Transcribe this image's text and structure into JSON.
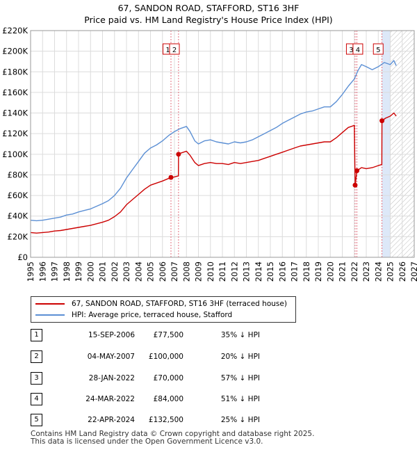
{
  "title_line1": "67, SANDON ROAD, STAFFORD, ST16 3HF",
  "title_line2": "Price paid vs. HM Land Registry's House Price Index (HPI)",
  "legend": {
    "property_label": "67, SANDON ROAD, STAFFORD, ST16 3HF (terraced house)",
    "hpi_label": "HPI: Average price, terraced house, Stafford"
  },
  "colors": {
    "property": "#cc0000",
    "hpi": "#5b8fd4",
    "highlight": "#dde8f8",
    "hatch": "#bbbbbb"
  },
  "sales": [
    {
      "num": "1",
      "date": "15-SEP-2006",
      "price": "£77,500",
      "hpi": "35% ↓ HPI"
    },
    {
      "num": "2",
      "date": "04-MAY-2007",
      "price": "£100,000",
      "hpi": "20% ↓ HPI"
    },
    {
      "num": "3",
      "date": "28-JAN-2022",
      "price": "£70,000",
      "hpi": "57% ↓ HPI"
    },
    {
      "num": "4",
      "date": "24-MAR-2022",
      "price": "£84,000",
      "hpi": "51% ↓ HPI"
    },
    {
      "num": "5",
      "date": "22-APR-2024",
      "price": "£132,500",
      "hpi": "25% ↓ HPI"
    }
  ],
  "footer_line1": "Contains HM Land Registry data © Crown copyright and database right 2025.",
  "footer_line2": "This data is licensed under the Open Government Licence v3.0.",
  "chart_data": {
    "type": "line",
    "title": "67, SANDON ROAD, STAFFORD, ST16 3HF",
    "subtitle": "Price paid vs. HM Land Registry's House Price Index (HPI)",
    "xlabel": "",
    "ylabel": "",
    "xlim": [
      1995,
      2027
    ],
    "ylim": [
      0,
      220000
    ],
    "x_ticks": [
      1995,
      1996,
      1997,
      1998,
      1999,
      2000,
      2001,
      2002,
      2003,
      2004,
      2005,
      2006,
      2007,
      2008,
      2009,
      2010,
      2011,
      2012,
      2013,
      2014,
      2015,
      2016,
      2017,
      2018,
      2019,
      2020,
      2021,
      2022,
      2023,
      2024,
      2025,
      2026,
      2027
    ],
    "y_ticks": [
      0,
      20000,
      40000,
      60000,
      80000,
      100000,
      120000,
      140000,
      160000,
      180000,
      200000,
      220000
    ],
    "y_tick_labels": [
      "£0",
      "£20K",
      "£40K",
      "£60K",
      "£80K",
      "£100K",
      "£120K",
      "£140K",
      "£160K",
      "£180K",
      "£200K",
      "£220K"
    ],
    "grid": true,
    "highlight_range": [
      2024.31,
      2025.0
    ],
    "forecast_start": 2025.0,
    "series": [
      {
        "name": "HPI: Average price, terraced house, Stafford",
        "x": [
          1995,
          1995.5,
          1996,
          1996.5,
          1997,
          1997.5,
          1998,
          1998.5,
          1999,
          1999.5,
          2000,
          2000.5,
          2001,
          2001.5,
          2002,
          2002.5,
          2003,
          2003.5,
          2004,
          2004.5,
          2005,
          2005.5,
          2006,
          2006.5,
          2007,
          2007.5,
          2008,
          2008.3,
          2008.7,
          2009,
          2009.5,
          2010,
          2010.5,
          2011,
          2011.5,
          2012,
          2012.5,
          2013,
          2013.5,
          2014,
          2014.5,
          2015,
          2015.5,
          2016,
          2016.5,
          2017,
          2017.5,
          2018,
          2018.5,
          2019,
          2019.5,
          2020,
          2020.5,
          2021,
          2021.5,
          2022,
          2022.3,
          2022.6,
          2023,
          2023.5,
          2024,
          2024.5,
          2025,
          2025.3,
          2025.5
        ],
        "values": [
          36000,
          35500,
          36000,
          37000,
          38000,
          39000,
          41000,
          42000,
          44000,
          45500,
          47000,
          49500,
          52000,
          55000,
          60000,
          67000,
          77000,
          85000,
          93000,
          101000,
          106000,
          109000,
          113000,
          118000,
          122000,
          125000,
          127000,
          122000,
          113000,
          110000,
          113000,
          114000,
          112000,
          111000,
          110000,
          112000,
          111000,
          112000,
          114000,
          117000,
          120000,
          123000,
          126000,
          130000,
          133000,
          136000,
          139000,
          141000,
          142000,
          144000,
          146000,
          146000,
          151000,
          158000,
          166000,
          173000,
          181000,
          187000,
          185000,
          182000,
          185000,
          189000,
          187000,
          191000,
          186000
        ]
      },
      {
        "name": "67, SANDON ROAD, STAFFORD, ST16 3HF (terraced house)",
        "x": [
          1995,
          1995.5,
          1996,
          1996.5,
          1997,
          1997.5,
          1998,
          1998.5,
          1999,
          1999.5,
          2000,
          2000.5,
          2001,
          2001.5,
          2002,
          2002.5,
          2003,
          2003.5,
          2004,
          2004.5,
          2005,
          2005.5,
          2006,
          2006.71,
          2006.72,
          2007.0,
          2007.33,
          2007.34,
          2007.5,
          2008,
          2008.3,
          2008.7,
          2009,
          2009.5,
          2010,
          2010.5,
          2011,
          2011.5,
          2012,
          2012.5,
          2013,
          2013.5,
          2014,
          2014.5,
          2015,
          2015.5,
          2016,
          2016.5,
          2017,
          2017.5,
          2018,
          2018.5,
          2019,
          2019.5,
          2020,
          2020.5,
          2021,
          2021.5,
          2022.0,
          2022.07,
          2022.08,
          2022.22,
          2022.23,
          2022.6,
          2023,
          2023.5,
          2024,
          2024.3,
          2024.31,
          2024.6,
          2025,
          2025.3,
          2025.5
        ],
        "values": [
          24000,
          23500,
          24000,
          24500,
          25500,
          26000,
          27000,
          28000,
          29000,
          30000,
          31000,
          32500,
          34000,
          36000,
          39500,
          44000,
          51000,
          56000,
          61000,
          66000,
          70000,
          72000,
          74000,
          77500,
          77500,
          78000,
          79000,
          100000,
          101000,
          103000,
          99000,
          92000,
          89000,
          91000,
          92000,
          91000,
          91000,
          90000,
          92000,
          91000,
          92000,
          93000,
          94000,
          96000,
          98000,
          100000,
          102000,
          104000,
          106000,
          108000,
          109000,
          110000,
          111000,
          112000,
          112000,
          116000,
          121000,
          126000,
          128000,
          70000,
          70000,
          84000,
          84000,
          87000,
          86000,
          87000,
          89000,
          90000,
          132500,
          135000,
          137000,
          140000,
          137000
        ]
      }
    ],
    "sale_markers": [
      {
        "label": "1",
        "x": 2006.71,
        "y": 77500
      },
      {
        "label": "2",
        "x": 2007.34,
        "y": 100000
      },
      {
        "label": "3",
        "x": 2022.07,
        "y": 70000
      },
      {
        "label": "4",
        "x": 2022.22,
        "y": 84000
      },
      {
        "label": "5",
        "x": 2024.31,
        "y": 132500
      }
    ]
  }
}
